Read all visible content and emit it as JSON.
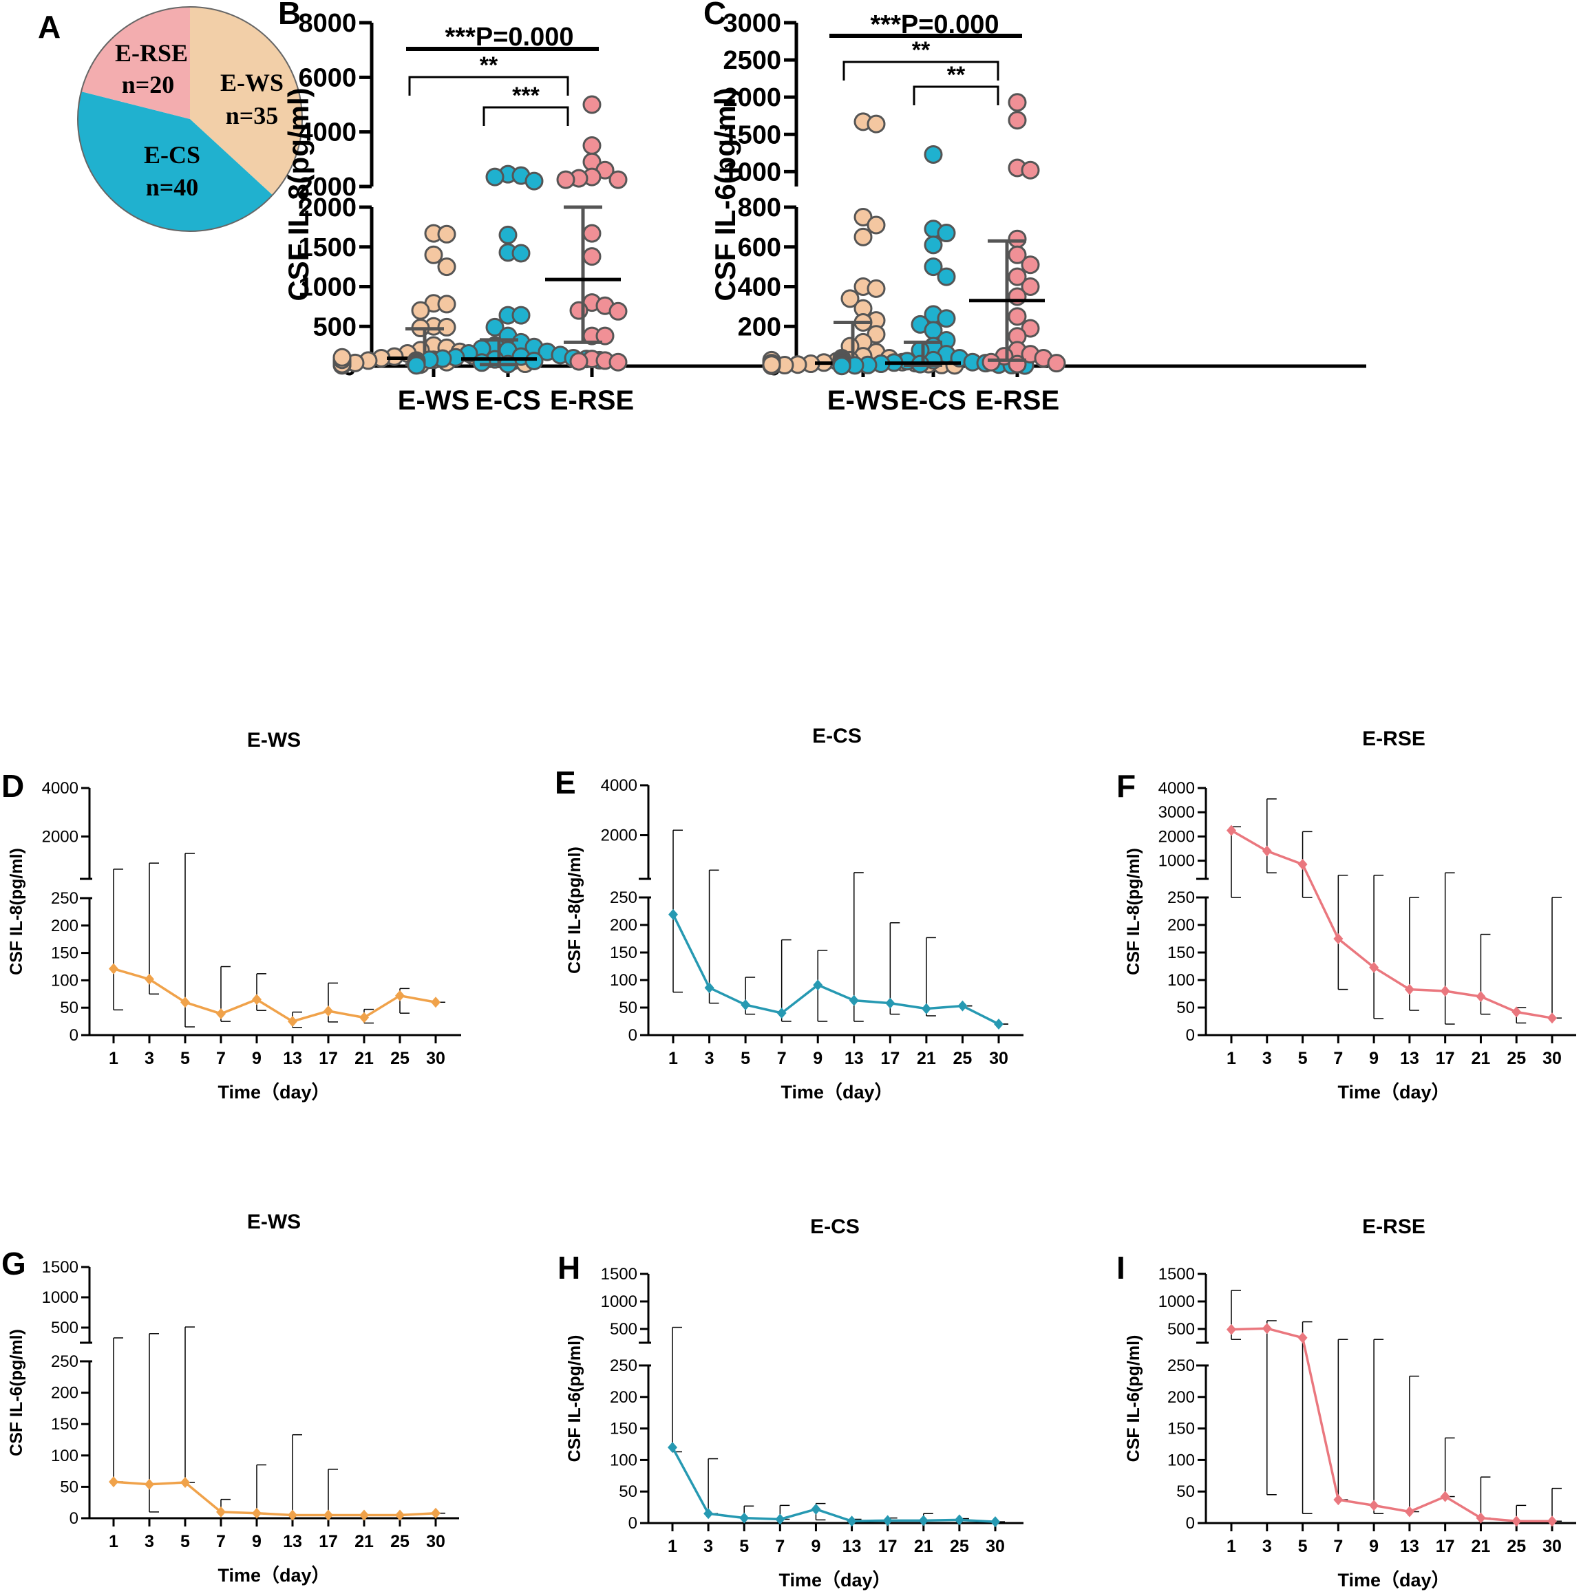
{
  "colors": {
    "wsFill": "#f4c7a1",
    "csFill": "#1fb1cf",
    "rseFill": "#f09096",
    "pieWS": "#f2cfa8",
    "pieCS": "#20b1cf",
    "pieRSE": "#f3adaf",
    "wsLine": "#f0a24a",
    "csLine": "#2699b2",
    "rseLine": "#ea777e",
    "markerStroke": "#555555",
    "summaryLine": "#555555"
  },
  "chart_data": [
    {
      "panel": "A",
      "type": "pie",
      "labels": [
        "E-WS",
        "E-CS",
        "E-RSE"
      ],
      "counts": [
        "n=35",
        "n=40",
        "n=20"
      ],
      "values": [
        35,
        40,
        20
      ]
    },
    {
      "panel": "B",
      "type": "scatter",
      "ylabel": "CSF IL-8(pg/ml)",
      "categories": [
        "E-WS",
        "E-CS",
        "E-RSE"
      ],
      "axis_lower": {
        "range": [
          0,
          2000
        ],
        "ticks": [
          "0",
          "500",
          "1000",
          "1500",
          "2000"
        ]
      },
      "axis_upper": {
        "range": [
          2000,
          8000
        ],
        "ticks": [
          "2000",
          "4000",
          "6000",
          "8000"
        ]
      },
      "title_stat": "***P=0.000",
      "brackets": [
        {
          "from": 0,
          "to": 2,
          "label": "**"
        },
        {
          "from": 1,
          "to": 2,
          "label": "***"
        }
      ],
      "series": [
        {
          "name": "E-WS",
          "median": 100,
          "q1": 20,
          "q3": 470,
          "values": [
            1670,
            1660,
            1400,
            1250,
            790,
            780,
            700,
            500,
            490,
            480,
            260,
            230,
            200,
            180,
            160,
            130,
            120,
            110,
            100,
            90,
            80,
            70,
            60,
            50,
            40,
            30,
            20,
            15,
            10,
            60,
            45,
            35,
            25,
            80,
            110
          ]
        },
        {
          "name": "E-CS",
          "median": 90,
          "q1": 20,
          "q3": 330,
          "values": [
            2450,
            2400,
            2350,
            2200,
            1650,
            1430,
            1420,
            640,
            640,
            490,
            380,
            300,
            260,
            240,
            220,
            200,
            180,
            160,
            140,
            120,
            110,
            100,
            95,
            90,
            85,
            80,
            75,
            70,
            65,
            60,
            55,
            50,
            45,
            40,
            35,
            30,
            25,
            20,
            15,
            10
          ]
        },
        {
          "name": "E-RSE",
          "median": 1090,
          "q1": 300,
          "q3": 2000,
          "values": [
            5000,
            3500,
            2900,
            2600,
            2350,
            2300,
            2250,
            2250,
            1670,
            1380,
            800,
            760,
            700,
            690,
            380,
            380,
            90,
            70,
            60,
            50
          ]
        }
      ]
    },
    {
      "panel": "C",
      "type": "scatter",
      "ylabel": "CSF IL-6(pg/ml)",
      "categories": [
        "E-WS",
        "E-CS",
        "E-RSE"
      ],
      "axis_lower": {
        "range": [
          0,
          800
        ],
        "ticks": [
          "0",
          "200",
          "400",
          "600",
          "800"
        ]
      },
      "axis_upper": {
        "range": [
          800,
          3000
        ],
        "ticks": [
          "1000",
          "1500",
          "2000",
          "2500",
          "3000"
        ]
      },
      "title_stat": "***P=0.000",
      "brackets": [
        {
          "from": 0,
          "to": 2,
          "label": "**"
        },
        {
          "from": 1,
          "to": 2,
          "label": "**"
        }
      ],
      "series": [
        {
          "name": "E-WS",
          "median": 15,
          "q1": 5,
          "q3": 220,
          "values": [
            1670,
            1640,
            750,
            710,
            650,
            400,
            390,
            340,
            290,
            230,
            220,
            160,
            120,
            100,
            70,
            50,
            40,
            30,
            25,
            20,
            18,
            15,
            12,
            10,
            8,
            6,
            5,
            4,
            3,
            2,
            10,
            20,
            30,
            15,
            8
          ]
        },
        {
          "name": "E-CS",
          "median": 15,
          "q1": 5,
          "q3": 120,
          "values": [
            1230,
            690,
            670,
            610,
            500,
            450,
            260,
            240,
            210,
            180,
            130,
            100,
            80,
            60,
            40,
            30,
            25,
            20,
            18,
            15,
            12,
            10,
            8,
            6,
            5,
            4,
            3,
            2,
            40,
            30,
            25,
            20,
            15,
            12,
            10,
            8,
            5,
            3,
            2,
            1
          ]
        },
        {
          "name": "E-RSE",
          "median": 330,
          "q1": 30,
          "q3": 630,
          "values": [
            1930,
            1690,
            1050,
            1020,
            640,
            560,
            510,
            450,
            400,
            350,
            250,
            190,
            150,
            80,
            60,
            50,
            40,
            20,
            15,
            10
          ]
        }
      ]
    },
    {
      "panel": "D",
      "type": "line",
      "title": "E-WS",
      "ylabel": "CSF IL-8(pg/ml)",
      "xlabel": "Time（day）",
      "x": [
        "1",
        "3",
        "5",
        "7",
        "9",
        "13",
        "17",
        "21",
        "25",
        "30"
      ],
      "y": [
        121,
        102,
        60,
        39,
        65,
        25,
        44,
        32,
        72,
        60
      ],
      "err_up": [
        650,
        900,
        1300,
        125,
        112,
        42,
        95,
        47,
        85,
        60
      ],
      "err_down": [
        46,
        75,
        15,
        25,
        45,
        14,
        24,
        22,
        40,
        60
      ],
      "axis_lower": {
        "range": [
          0,
          250
        ],
        "ticks": [
          "0",
          "50",
          "100",
          "150",
          "200",
          "250"
        ]
      },
      "axis_upper": {
        "range": [
          250,
          4000
        ],
        "ticks": [
          "2000",
          "4000"
        ]
      }
    },
    {
      "panel": "E",
      "type": "line",
      "title": "E-CS",
      "ylabel": "CSF IL-8(pg/ml)",
      "xlabel": "Time（day）",
      "x": [
        "1",
        "3",
        "5",
        "7",
        "9",
        "13",
        "17",
        "21",
        "25",
        "30"
      ],
      "y": [
        219,
        86,
        55,
        40,
        91,
        63,
        58,
        48,
        53,
        20
      ],
      "err_up": [
        2200,
        600,
        105,
        173,
        154,
        500,
        204,
        177,
        53,
        20
      ],
      "err_down": [
        78,
        58,
        38,
        25,
        25,
        25,
        38,
        35,
        53,
        20
      ],
      "axis_lower": {
        "range": [
          0,
          250
        ],
        "ticks": [
          "0",
          "50",
          "100",
          "150",
          "200",
          "250"
        ]
      },
      "axis_upper": {
        "range": [
          250,
          4000
        ],
        "ticks": [
          "2000",
          "4000"
        ]
      }
    },
    {
      "panel": "F",
      "type": "line",
      "title": "E-RSE",
      "ylabel": "CSF IL-8(pg/ml)",
      "xlabel": "Time（day）",
      "x": [
        "1",
        "3",
        "5",
        "7",
        "9",
        "13",
        "17",
        "21",
        "25",
        "30"
      ],
      "y": [
        2250,
        1400,
        850,
        175,
        123,
        83,
        80,
        70,
        42,
        31
      ],
      "err_up": [
        2400,
        3550,
        2200,
        400,
        400,
        250,
        500,
        183,
        50,
        250
      ],
      "err_down": [
        250,
        500,
        250,
        83,
        30,
        45,
        20,
        38,
        22,
        31
      ],
      "axis_lower": {
        "range": [
          0,
          250
        ],
        "ticks": [
          "0",
          "50",
          "100",
          "150",
          "200",
          "250"
        ]
      },
      "axis_upper": {
        "range": [
          250,
          4000
        ],
        "ticks": [
          "1000",
          "2000",
          "3000",
          "4000"
        ]
      }
    },
    {
      "panel": "G",
      "type": "line",
      "title": "E-WS",
      "ylabel": "CSF IL-6(pg/ml)",
      "xlabel": "Time（day）",
      "x": [
        "1",
        "3",
        "5",
        "7",
        "9",
        "13",
        "17",
        "21",
        "25",
        "30"
      ],
      "y": [
        58,
        54,
        57,
        10,
        8,
        5,
        5,
        5,
        5,
        8
      ],
      "err_up": [
        330,
        400,
        510,
        30,
        85,
        133,
        78,
        5,
        5,
        8
      ],
      "err_down": [
        58,
        10,
        57,
        10,
        8,
        5,
        5,
        5,
        5,
        8
      ],
      "axis_lower": {
        "range": [
          0,
          250
        ],
        "ticks": [
          "0",
          "50",
          "100",
          "150",
          "200",
          "250"
        ]
      },
      "axis_upper": {
        "range": [
          250,
          1500
        ],
        "ticks": [
          "500",
          "1000",
          "1500"
        ]
      }
    },
    {
      "panel": "H",
      "type": "line",
      "title": "E-CS",
      "ylabel": "CSF IL-6(pg/ml)",
      "xlabel": "Time（day）",
      "x": [
        "1",
        "3",
        "5",
        "7",
        "9",
        "13",
        "17",
        "21",
        "25",
        "30"
      ],
      "y": [
        120,
        15,
        8,
        6,
        22,
        3,
        4,
        4,
        5,
        2
      ],
      "err_up": [
        530,
        102,
        27,
        28,
        31,
        6,
        8,
        15,
        7,
        2
      ],
      "err_down": [
        113,
        15,
        8,
        6,
        5,
        3,
        4,
        4,
        5,
        2
      ],
      "axis_lower": {
        "range": [
          0,
          250
        ],
        "ticks": [
          "0",
          "50",
          "100",
          "150",
          "200",
          "250"
        ]
      },
      "axis_upper": {
        "range": [
          250,
          1500
        ],
        "ticks": [
          "500",
          "1000",
          "1500"
        ]
      }
    },
    {
      "panel": "I",
      "type": "line",
      "title": "E-RSE",
      "ylabel": "CSF IL-6(pg/ml)",
      "xlabel": "Time（day）",
      "x": [
        "1",
        "3",
        "5",
        "7",
        "9",
        "13",
        "17",
        "21",
        "25",
        "30"
      ],
      "y": [
        490,
        510,
        340,
        37,
        28,
        18,
        42,
        8,
        3,
        3
      ],
      "err_up": [
        1200,
        650,
        630,
        310,
        310,
        233,
        135,
        73,
        28,
        55
      ],
      "err_down": [
        310,
        45,
        15,
        37,
        15,
        18,
        42,
        8,
        3,
        3
      ],
      "axis_lower": {
        "range": [
          0,
          250
        ],
        "ticks": [
          "0",
          "50",
          "100",
          "150",
          "200",
          "250"
        ]
      },
      "axis_upper": {
        "range": [
          250,
          1500
        ],
        "ticks": [
          "500",
          "1000",
          "1500"
        ]
      }
    }
  ]
}
